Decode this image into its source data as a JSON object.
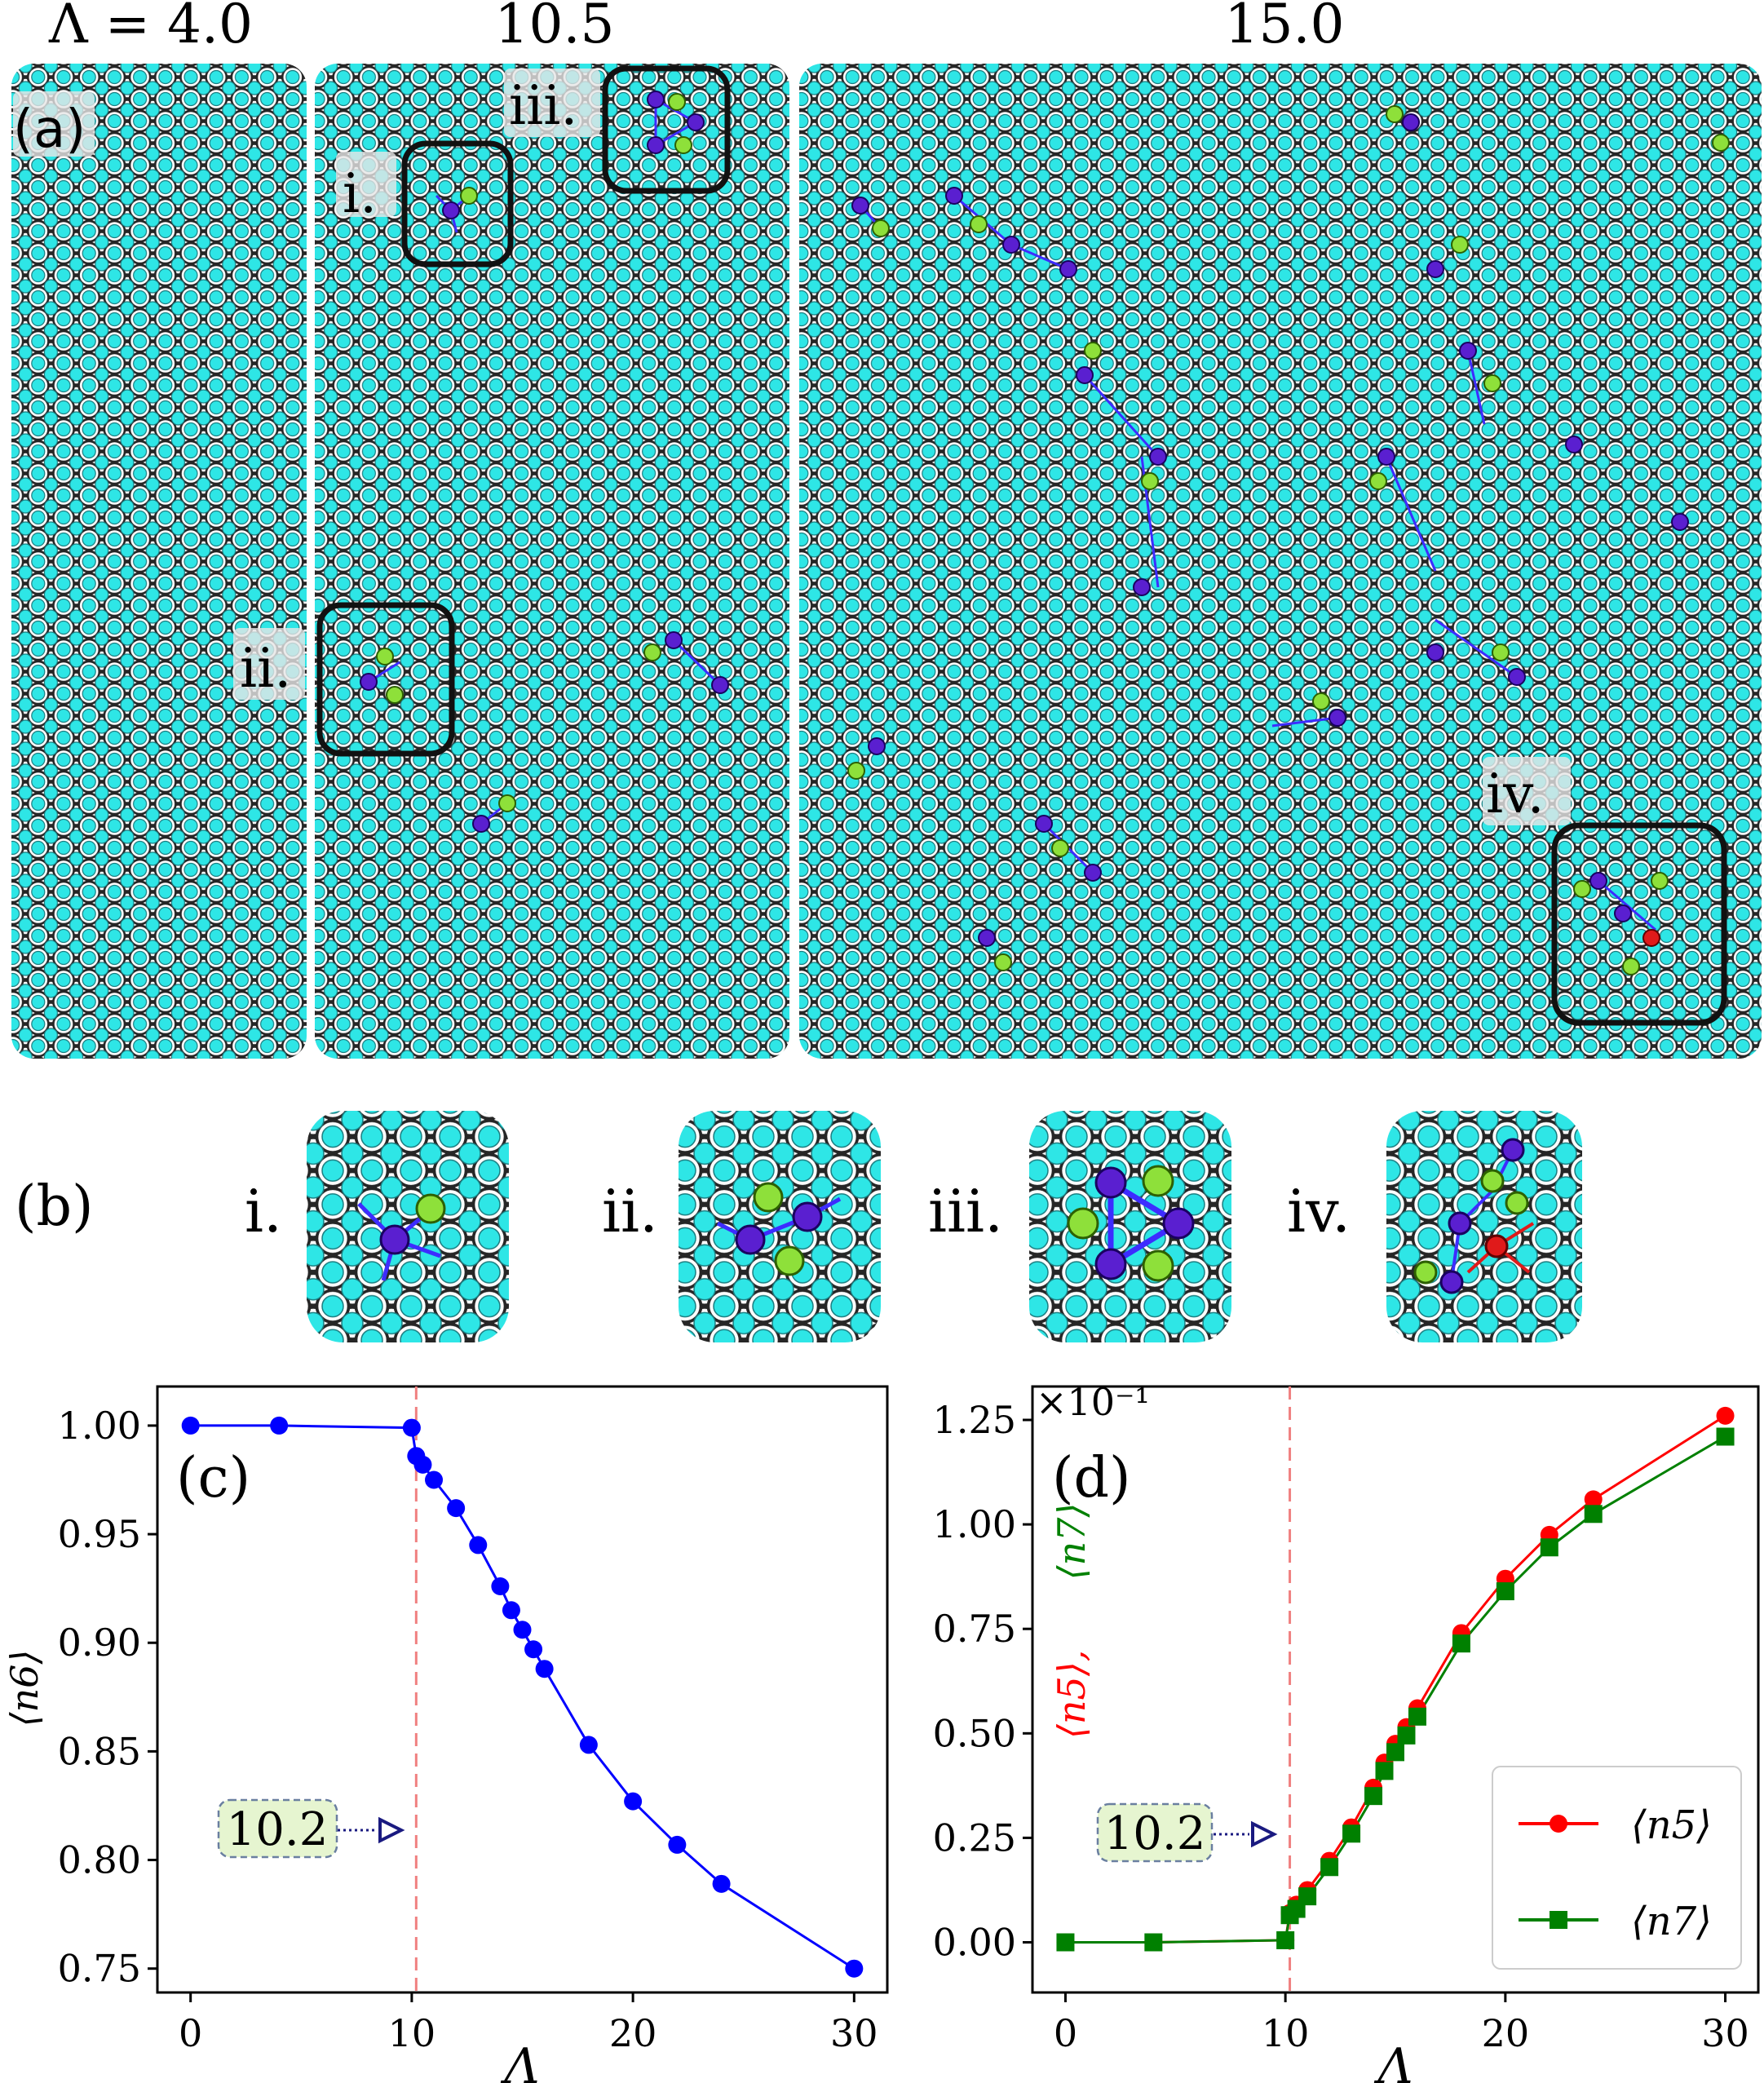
{
  "panel_a": {
    "label": "(a)",
    "titles": [
      "Λ = 4.0",
      "10.5",
      "15.0"
    ],
    "insets": [
      "i.",
      "ii.",
      "iii.",
      "iv."
    ],
    "lattice_color": "#2ee6e6",
    "edge_color": "#444444",
    "defect5_color": "#5a1fd0",
    "defect7_color": "#8ee03a",
    "defect_red_color": "#e01a1a"
  },
  "panel_b": {
    "label": "(b)",
    "items": [
      "i.",
      "ii.",
      "iii.",
      "iv."
    ]
  },
  "chart_data": [
    {
      "type": "line",
      "panel": "(c)",
      "xlabel": "Λ",
      "ylabel": "⟨n6⟩",
      "xlim": [
        -1.5,
        31.5
      ],
      "ylim": [
        0.739,
        1.018
      ],
      "xticks": [
        0,
        10,
        20,
        30
      ],
      "yticks": [
        0.75,
        0.8,
        0.85,
        0.9,
        0.95,
        1.0
      ],
      "ytick_labels": [
        "0.75",
        "0.80",
        "0.85",
        "0.90",
        "0.95",
        "1.00"
      ],
      "vline": 10.2,
      "annotation": {
        "text": "10.2",
        "x": 9.2,
        "y": 0.81
      },
      "series": [
        {
          "name": "⟨n6⟩",
          "color": "#0000ff",
          "marker": "circle",
          "x": [
            0,
            4,
            10,
            10.2,
            10.5,
            11,
            12,
            13,
            14,
            14.5,
            15,
            15.5,
            16,
            18,
            20,
            22,
            24,
            30
          ],
          "y": [
            1.0,
            1.0,
            0.999,
            0.986,
            0.982,
            0.975,
            0.962,
            0.945,
            0.926,
            0.915,
            0.906,
            0.897,
            0.888,
            0.853,
            0.827,
            0.807,
            0.789,
            0.75
          ]
        }
      ]
    },
    {
      "type": "line",
      "panel": "(d)",
      "xlabel": "Λ",
      "ylabel": "⟨n5⟩,  ⟨n7⟩",
      "ylabel_parts": [
        "⟨n5⟩,",
        "⟨n7⟩"
      ],
      "scale_label": "×10⁻¹",
      "xlim": [
        -1.5,
        31.5
      ],
      "ylim": [
        -0.12,
        1.33
      ],
      "xticks": [
        0,
        10,
        20,
        30
      ],
      "yticks": [
        0.0,
        0.25,
        0.5,
        0.75,
        1.0,
        1.25
      ],
      "ytick_labels": [
        "0.00",
        "0.25",
        "0.50",
        "0.75",
        "1.00",
        "1.25"
      ],
      "vline": 10.2,
      "annotation": {
        "text": "10.2",
        "x": 9.5,
        "y": 0.3
      },
      "legend": [
        "⟨n5⟩",
        "⟨n7⟩"
      ],
      "series": [
        {
          "name": "⟨n5⟩",
          "color": "#ff0000",
          "marker": "circle",
          "x": [
            0,
            4,
            10,
            10.2,
            10.5,
            11,
            12,
            13,
            14,
            14.5,
            15,
            15.5,
            16,
            18,
            20,
            22,
            24,
            30
          ],
          "y": [
            0.0,
            0.0,
            0.005,
            0.07,
            0.09,
            0.125,
            0.195,
            0.275,
            0.37,
            0.43,
            0.475,
            0.515,
            0.56,
            0.74,
            0.87,
            0.975,
            1.06,
            1.26
          ]
        },
        {
          "name": "⟨n7⟩",
          "color": "#008000",
          "marker": "square",
          "x": [
            0,
            4,
            10,
            10.2,
            10.5,
            11,
            12,
            13,
            14,
            14.5,
            15,
            15.5,
            16,
            18,
            20,
            22,
            24,
            30
          ],
          "y": [
            0.0,
            0.0,
            0.005,
            0.065,
            0.08,
            0.11,
            0.18,
            0.26,
            0.35,
            0.41,
            0.455,
            0.495,
            0.54,
            0.715,
            0.84,
            0.945,
            1.025,
            1.21
          ]
        }
      ]
    }
  ]
}
